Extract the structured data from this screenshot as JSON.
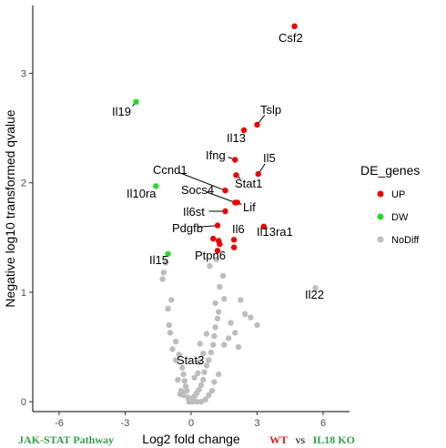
{
  "colors": {
    "up": "#ee0000",
    "dw": "#22dd22",
    "nodiff": "#bdbdbd",
    "pathway": "#33a04a",
    "wt": "#e0211d",
    "ko": "#33a04a"
  },
  "chart_data": {
    "type": "scatter",
    "xlabel": "Log2 fold change",
    "ylabel": "Negative log10 transformed qvalue",
    "xlim": [
      -7.2,
      7.2
    ],
    "ylim": [
      -0.09,
      3.62
    ],
    "xticks": [
      -6,
      -3,
      0,
      3,
      6
    ],
    "yticks": [
      0,
      1,
      2,
      3
    ],
    "grid": false,
    "legend": {
      "title": "DE_genes",
      "position": "right",
      "entries": [
        {
          "key": "up",
          "label": "UP"
        },
        {
          "key": "dw",
          "label": "DW"
        },
        {
          "key": "nodiff",
          "label": "NoDiff"
        }
      ]
    },
    "series": [
      {
        "name": "UP",
        "color_key": "up",
        "points": [
          [
            4.7,
            3.43
          ],
          [
            3.0,
            2.53
          ],
          [
            2.4,
            2.48
          ],
          [
            2.0,
            2.21
          ],
          [
            2.05,
            2.07
          ],
          [
            3.05,
            2.08
          ],
          [
            1.55,
            1.93
          ],
          [
            2.0,
            1.82
          ],
          [
            2.1,
            1.82
          ],
          [
            1.55,
            1.74
          ],
          [
            3.3,
            1.6
          ],
          [
            1.2,
            1.61
          ],
          [
            1.0,
            1.49
          ],
          [
            1.25,
            1.47
          ],
          [
            1.3,
            1.44
          ],
          [
            1.95,
            1.48
          ],
          [
            1.95,
            1.41
          ],
          [
            1.2,
            1.38
          ]
        ]
      },
      {
        "name": "DW",
        "color_key": "dw",
        "points": [
          [
            -2.5,
            2.74
          ],
          [
            -1.6,
            1.97
          ],
          [
            -1.05,
            1.35
          ]
        ]
      },
      {
        "name": "NoDiff",
        "color_key": "nodiff",
        "points": [
          [
            5.65,
            1.04
          ],
          [
            -1.15,
            1.27
          ],
          [
            -1.25,
            1.18
          ],
          [
            -1.3,
            1.12
          ],
          [
            -0.9,
            0.93
          ],
          [
            -1.05,
            0.85
          ],
          [
            -1.0,
            0.7
          ],
          [
            -0.95,
            0.63
          ],
          [
            -0.7,
            0.55
          ],
          [
            -0.85,
            0.48
          ],
          [
            -0.55,
            0.43
          ],
          [
            -0.7,
            0.38
          ],
          [
            -0.4,
            0.31
          ],
          [
            -0.35,
            0.25
          ],
          [
            -0.3,
            0.19
          ],
          [
            -0.25,
            0.14
          ],
          [
            -0.2,
            0.1
          ],
          [
            -0.35,
            0.06
          ],
          [
            -0.15,
            0.04
          ],
          [
            -0.05,
            0.02
          ],
          [
            0.05,
            0.03
          ],
          [
            0.15,
            0.05
          ],
          [
            0.25,
            0.08
          ],
          [
            0.35,
            0.11
          ],
          [
            0.45,
            0.15
          ],
          [
            0.55,
            0.2
          ],
          [
            0.6,
            0.27
          ],
          [
            0.7,
            0.33
          ],
          [
            0.8,
            0.38
          ],
          [
            0.9,
            0.45
          ],
          [
            1.0,
            0.52
          ],
          [
            1.05,
            0.6
          ],
          [
            1.1,
            0.68
          ],
          [
            1.2,
            0.76
          ],
          [
            1.25,
            0.82
          ],
          [
            1.1,
            0.9
          ],
          [
            1.5,
            0.94
          ],
          [
            1.3,
            1.05
          ],
          [
            1.45,
            1.15
          ],
          [
            1.15,
            1.3
          ],
          [
            0.85,
            1.24
          ],
          [
            1.5,
            0.52
          ],
          [
            1.7,
            0.58
          ],
          [
            2.0,
            0.63
          ],
          [
            1.8,
            0.72
          ],
          [
            2.45,
            0.8
          ],
          [
            2.7,
            0.77
          ],
          [
            3.0,
            0.7
          ],
          [
            2.25,
            0.93
          ],
          [
            2.15,
            0.5
          ],
          [
            1.25,
            0.25
          ],
          [
            1.05,
            0.18
          ],
          [
            0.95,
            0.1
          ],
          [
            0.8,
            0.06
          ],
          [
            0.65,
            0.02
          ],
          [
            0.45,
            0.0
          ],
          [
            0.25,
            0.0
          ],
          [
            0.05,
            0.0
          ],
          [
            -0.1,
            0.0
          ],
          [
            -0.45,
            0.1
          ],
          [
            -0.6,
            0.2
          ],
          [
            -0.5,
            0.07
          ],
          [
            0.3,
            0.26
          ],
          [
            0.15,
            0.22
          ],
          [
            0.55,
            0.44
          ],
          [
            0.35,
            0.36
          ],
          [
            0.7,
            0.62
          ],
          [
            0.4,
            0.53
          ]
        ]
      }
    ],
    "annotations": [
      {
        "text": "Csf2",
        "x": 4.7,
        "y": 3.43
      },
      {
        "text": "Tslp",
        "x": 3.0,
        "y": 2.53
      },
      {
        "text": "Il13",
        "x": 2.4,
        "y": 2.48
      },
      {
        "text": "Ifng",
        "x": 2.0,
        "y": 2.21
      },
      {
        "text": "Il5",
        "x": 3.05,
        "y": 2.08
      },
      {
        "text": "Ccnd1",
        "x": 1.55,
        "y": 1.93
      },
      {
        "text": "Stat1",
        "x": 2.05,
        "y": 2.07
      },
      {
        "text": "Socs4",
        "x": 2.0,
        "y": 1.82
      },
      {
        "text": "Lif",
        "x": 2.1,
        "y": 1.82
      },
      {
        "text": "Il6st",
        "x": 1.55,
        "y": 1.74
      },
      {
        "text": "Il13ra1",
        "x": 3.3,
        "y": 1.6
      },
      {
        "text": "Pdgfb",
        "x": 1.2,
        "y": 1.61
      },
      {
        "text": "Il6",
        "x": 1.95,
        "y": 1.48
      },
      {
        "text": "Ptpn6",
        "x": 1.2,
        "y": 1.38
      },
      {
        "text": "Il19",
        "x": -2.5,
        "y": 2.74
      },
      {
        "text": "Il10ra",
        "x": -1.6,
        "y": 1.97
      },
      {
        "text": "Il15",
        "x": -1.05,
        "y": 1.35
      },
      {
        "text": "Il22",
        "x": 5.65,
        "y": 1.04
      },
      {
        "text": "Stat3",
        "x": 0.35,
        "y": 0.45
      }
    ]
  },
  "caption": {
    "pathway": "JAK-STAT Pathway",
    "wt": "WT",
    "vs": "vs",
    "ko": "IL18 KO"
  }
}
